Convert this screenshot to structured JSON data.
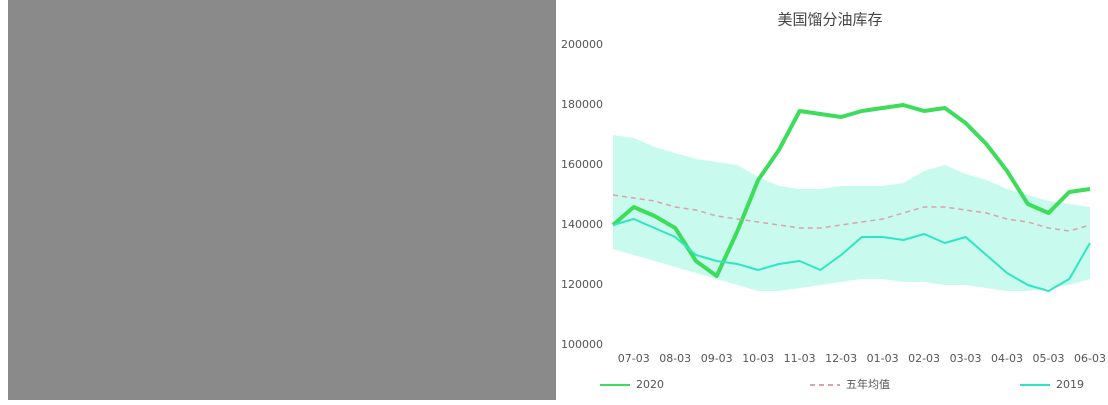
{
  "chart_data": {
    "type": "line",
    "title": "美国馏分油库存",
    "categories": [
      null,
      "07-03",
      null,
      "08-03",
      null,
      "09-03",
      null,
      "10-03",
      null,
      "11-03",
      null,
      "12-03",
      null,
      "01-03",
      null,
      "02-03",
      null,
      "03-03",
      null,
      "04-03",
      null,
      "05-03",
      null,
      "06-03"
    ],
    "series": [
      {
        "name": "2020",
        "color": "#3ddc5a",
        "width": 4,
        "values": [
          140000,
          146000,
          143000,
          139000,
          128000,
          123000,
          138000,
          155000,
          165000,
          178000,
          177000,
          176000,
          178000,
          179000,
          180000,
          178000,
          179000,
          174000,
          167000,
          158000,
          147000,
          144000,
          151000,
          152000
        ]
      },
      {
        "name": "五年均值",
        "color": "#d9a3a8",
        "dashed": true,
        "width": 1.5,
        "values": [
          150000,
          149000,
          148000,
          146000,
          145000,
          143000,
          142000,
          141000,
          140000,
          139000,
          139000,
          140000,
          141000,
          142000,
          144000,
          146000,
          146000,
          145000,
          144000,
          142000,
          141000,
          139000,
          138000,
          140000
        ]
      },
      {
        "name": "2019",
        "color": "#2ee6c4",
        "width": 2,
        "values": [
          140000,
          142000,
          139000,
          136000,
          130000,
          128000,
          127000,
          125000,
          127000,
          128000,
          125000,
          130000,
          136000,
          136000,
          135000,
          137000,
          134000,
          136000,
          130000,
          124000,
          120000,
          118000,
          122000,
          134000
        ]
      }
    ],
    "band": {
      "color": "#c8fbee",
      "high": [
        170000,
        169000,
        166000,
        164000,
        162000,
        161000,
        160000,
        156000,
        153000,
        152000,
        152000,
        153000,
        153000,
        153000,
        154000,
        158000,
        160000,
        157000,
        155000,
        152000,
        150000,
        148000,
        147000,
        146000
      ],
      "low": [
        132000,
        130000,
        128000,
        126000,
        124000,
        122000,
        120000,
        118000,
        118000,
        119000,
        120000,
        121000,
        122000,
        122000,
        121000,
        121000,
        120000,
        120000,
        119000,
        118000,
        118000,
        119000,
        120000,
        122000
      ]
    },
    "ylim": [
      100000,
      200000
    ],
    "yticks": [
      100000,
      120000,
      140000,
      160000,
      180000,
      200000
    ],
    "grid": false
  }
}
